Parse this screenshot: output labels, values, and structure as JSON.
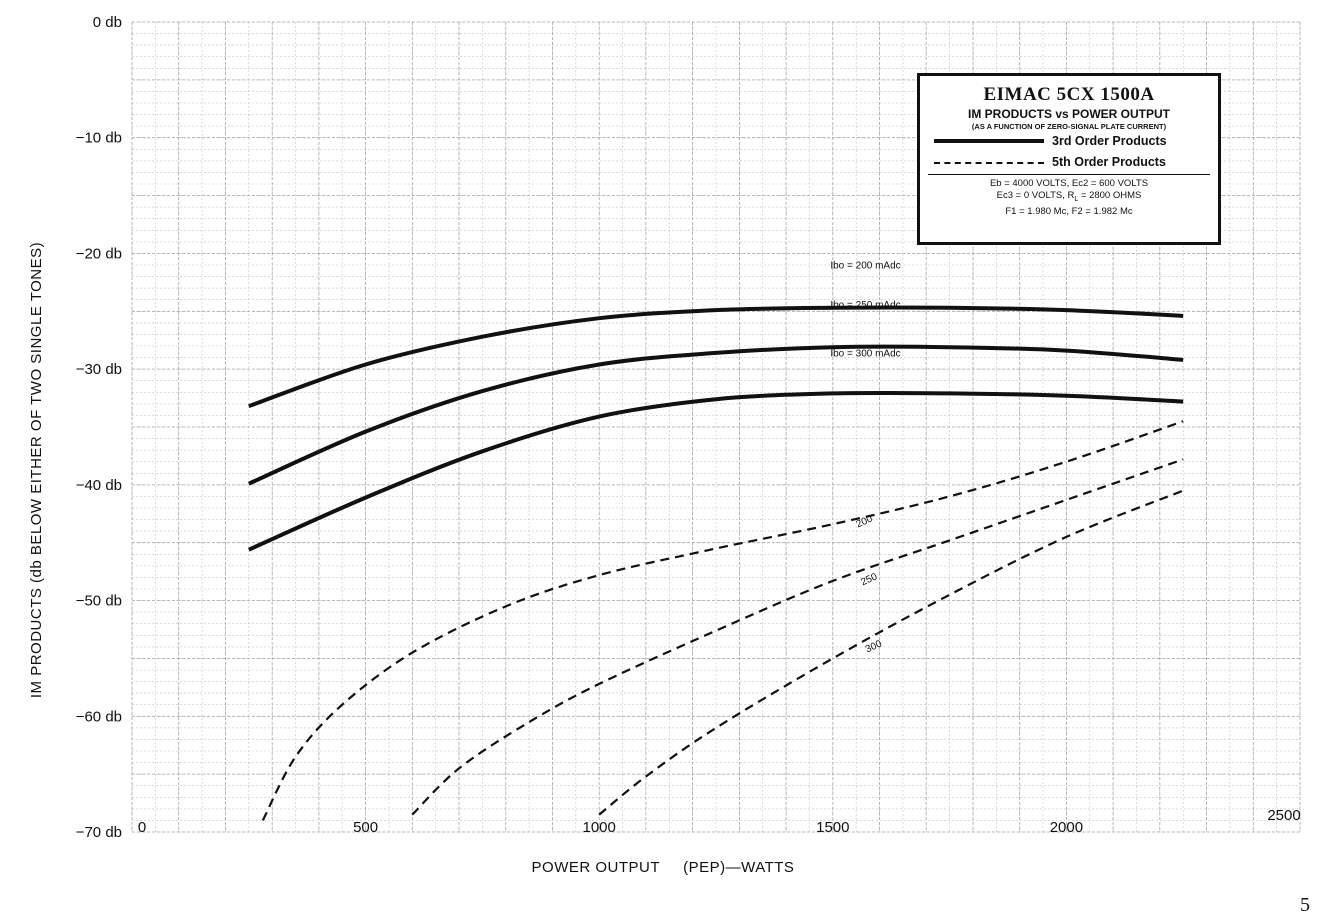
{
  "chart_data": {
    "type": "line",
    "legend": {
      "title": "EIMAC 5CX 1500A",
      "subtitle": "IM PRODUCTS vs POWER OUTPUT",
      "note": "(AS A FUNCTION OF ZERO-SIGNAL PLATE CURRENT)",
      "entries": [
        {
          "style": "solid",
          "label": "3rd Order Products"
        },
        {
          "style": "dashed",
          "label": "5th Order Products"
        }
      ],
      "conditions": [
        "Eb = 4000  VOLTS,  Ec2 = 600  VOLTS",
        "Ec3 = 0  VOLTS,  R",
        "L",
        " = 2800  OHMS",
        "F1 = 1.980  Mc,  F2 = 1.982  Mc"
      ],
      "placement": "top-right"
    },
    "xlabel": "POWER OUTPUT     (PEP)—WATTS",
    "ylabel": "IM PRODUCTS (db BELOW EITHER OF TWO SINGLE TONES)",
    "xlim": [
      0,
      2500
    ],
    "ylim": [
      -70,
      0
    ],
    "x_ticks": [
      {
        "value": 0,
        "label": "0"
      },
      {
        "value": 500,
        "label": "500"
      },
      {
        "value": 1000,
        "label": "1000"
      },
      {
        "value": 1500,
        "label": "1500"
      },
      {
        "value": 2000,
        "label": "2000"
      },
      {
        "value": 2500,
        "label": "2500"
      }
    ],
    "y_ticks": [
      {
        "value": 0,
        "label": "0 db"
      },
      {
        "value": -10,
        "label": "−10 db"
      },
      {
        "value": -20,
        "label": "−20 db"
      },
      {
        "value": -30,
        "label": "−30 db"
      },
      {
        "value": -40,
        "label": "−40 db"
      },
      {
        "value": -50,
        "label": "−50 db"
      },
      {
        "value": -60,
        "label": "−60 db"
      },
      {
        "value": -70,
        "label": "−70 db"
      }
    ],
    "grid": true,
    "series": [
      {
        "name": "Ibo = 200 mAdc",
        "order": 3,
        "style": "solid",
        "label_at": [
          1570,
          -21.3
        ],
        "x": [
          250,
          500,
          750,
          1000,
          1250,
          1500,
          1750,
          2000,
          2250
        ],
        "y": [
          -33.2,
          -29.6,
          -27.2,
          -25.6,
          -24.9,
          -24.7,
          -24.7,
          -24.9,
          -25.4
        ]
      },
      {
        "name": "Ibo = 250 mAdc",
        "order": 3,
        "style": "solid",
        "label_at": [
          1570,
          -24.7
        ],
        "x": [
          250,
          500,
          750,
          1000,
          1250,
          1500,
          1750,
          2000,
          2250
        ],
        "y": [
          -39.9,
          -35.4,
          -31.9,
          -29.6,
          -28.6,
          -28.1,
          -28.1,
          -28.4,
          -29.2
        ]
      },
      {
        "name": "Ibo = 300 mAdc",
        "order": 3,
        "style": "solid",
        "label_at": [
          1570,
          -28.9
        ],
        "x": [
          250,
          500,
          750,
          1000,
          1250,
          1500,
          1750,
          2000,
          2250
        ],
        "y": [
          -45.6,
          -41.1,
          -37.1,
          -34.1,
          -32.6,
          -32.1,
          -32.1,
          -32.3,
          -32.8
        ]
      },
      {
        "name": "200",
        "order": 5,
        "style": "dashed",
        "label_at": [
          1570,
          -43.4
        ],
        "x": [
          280,
          350,
          450,
          600,
          800,
          1000,
          1250,
          1500,
          1750,
          2000,
          2250
        ],
        "y": [
          -69,
          -63.5,
          -59,
          -54.5,
          -50.5,
          -47.8,
          -45.5,
          -43.4,
          -41.0,
          -38.0,
          -34.5
        ]
      },
      {
        "name": "250",
        "order": 5,
        "style": "dashed",
        "label_at": [
          1580,
          -48.4
        ],
        "x": [
          600,
          700,
          850,
          1000,
          1250,
          1500,
          1750,
          2000,
          2250
        ],
        "y": [
          -68.5,
          -64.5,
          -60.5,
          -57.2,
          -52.6,
          -48.3,
          -44.8,
          -41.3,
          -37.8
        ]
      },
      {
        "name": "300",
        "order": 5,
        "style": "dashed",
        "label_at": [
          1590,
          -54.2
        ],
        "x": [
          1000,
          1100,
          1250,
          1500,
          1750,
          2000,
          2250
        ],
        "y": [
          -68.5,
          -65.2,
          -61.0,
          -55.0,
          -49.5,
          -44.5,
          -40.5
        ]
      }
    ]
  },
  "page_number": "5"
}
